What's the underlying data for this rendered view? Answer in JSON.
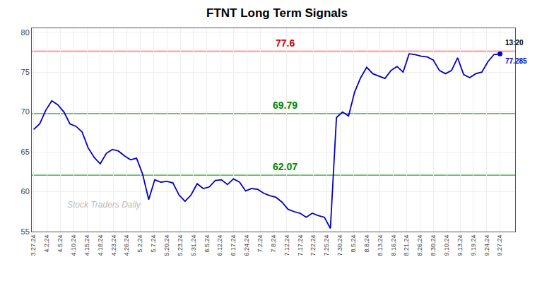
{
  "chart_data": {
    "type": "line",
    "title": "FTNT Long Term Signals",
    "x": [
      0,
      1,
      2,
      3,
      4,
      5,
      6,
      7,
      8,
      9,
      10,
      11,
      12,
      13,
      14,
      15,
      16,
      17,
      18,
      19,
      20,
      21,
      22,
      23,
      24,
      25,
      26,
      27,
      28,
      29,
      30,
      31,
      32,
      33,
      34,
      35,
      36,
      37,
      38,
      39,
      40,
      41,
      42,
      43,
      44,
      45,
      46,
      47,
      48,
      49,
      50,
      51,
      52,
      53,
      54,
      55,
      56,
      57,
      58,
      59,
      60,
      61,
      62,
      63,
      64,
      65,
      66,
      67,
      68,
      69,
      70,
      71,
      72,
      73,
      74,
      75,
      76,
      77
    ],
    "values": [
      67.8,
      68.5,
      70.2,
      71.4,
      70.9,
      70.0,
      68.5,
      68.2,
      67.5,
      65.5,
      64.3,
      63.5,
      64.8,
      65.3,
      65.1,
      64.5,
      64.0,
      64.2,
      62.2,
      59.0,
      61.5,
      61.2,
      61.3,
      61.1,
      59.6,
      58.8,
      59.6,
      61.0,
      60.4,
      60.6,
      61.4,
      61.5,
      60.9,
      61.6,
      61.2,
      60.1,
      60.4,
      60.3,
      59.8,
      59.5,
      59.3,
      58.7,
      57.8,
      57.5,
      57.3,
      56.8,
      57.3,
      57.0,
      56.8,
      55.4,
      69.3,
      70.0,
      69.5,
      72.5,
      74.3,
      75.6,
      74.8,
      74.5,
      74.2,
      75.2,
      75.7,
      75.0,
      77.3,
      77.2,
      77.0,
      76.9,
      76.5,
      75.2,
      74.8,
      75.2,
      76.8,
      74.7,
      74.3,
      74.8,
      75.0,
      76.3,
      77.2,
      77.285
    ],
    "color": "#0000cc",
    "xlim": [
      -0.3,
      79.5
    ],
    "xticks": [
      {
        "value": 0,
        "label": "3.27.24"
      },
      {
        "value": 2.2,
        "label": "4.2.24"
      },
      {
        "value": 4.4,
        "label": "4.5.24"
      },
      {
        "value": 6.6,
        "label": "4.10.24"
      },
      {
        "value": 8.8,
        "label": "4.15.24"
      },
      {
        "value": 11,
        "label": "4.18.24"
      },
      {
        "value": 13.2,
        "label": "4.23.24"
      },
      {
        "value": 15.4,
        "label": "4.26.24"
      },
      {
        "value": 17.6,
        "label": "5.2.24"
      },
      {
        "value": 19.8,
        "label": "5.7.24"
      },
      {
        "value": 22,
        "label": "5.20.24"
      },
      {
        "value": 24.2,
        "label": "5.23.24"
      },
      {
        "value": 26.4,
        "label": "5.31.24"
      },
      {
        "value": 28.6,
        "label": "6.5.24"
      },
      {
        "value": 30.8,
        "label": "6.12.24"
      },
      {
        "value": 33,
        "label": "6.17.24"
      },
      {
        "value": 35.2,
        "label": "6.24.24"
      },
      {
        "value": 37.4,
        "label": "7.2.24"
      },
      {
        "value": 39.6,
        "label": "7.8.24"
      },
      {
        "value": 41.8,
        "label": "7.12.24"
      },
      {
        "value": 44,
        "label": "7.17.24"
      },
      {
        "value": 46.2,
        "label": "7.22.24"
      },
      {
        "value": 48.4,
        "label": "7.25.24"
      },
      {
        "value": 50.6,
        "label": "7.30.24"
      },
      {
        "value": 52.8,
        "label": "8.5.24"
      },
      {
        "value": 55,
        "label": "8.8.24"
      },
      {
        "value": 57.2,
        "label": "8.13.24"
      },
      {
        "value": 59.4,
        "label": "8.16.24"
      },
      {
        "value": 61.6,
        "label": "8.21.24"
      },
      {
        "value": 63.8,
        "label": "8.26.24"
      },
      {
        "value": 66,
        "label": "8.30.24"
      },
      {
        "value": 68.2,
        "label": "9.10.24"
      },
      {
        "value": 70.4,
        "label": "9.13.24"
      },
      {
        "value": 72.6,
        "label": "9.19.24"
      },
      {
        "value": 74.8,
        "label": "9.24.24"
      },
      {
        "value": 77,
        "label": "9.27.24"
      }
    ],
    "ylim": [
      55,
      80.5
    ],
    "yticks": [
      55,
      60,
      65,
      70,
      75,
      80
    ],
    "grid": true,
    "reference_lines": [
      {
        "value": 77.6,
        "color": "#ffaaaa",
        "label": "77.6",
        "label_color": "#cc0000"
      },
      {
        "value": 69.79,
        "color": "#66bb66",
        "label": "69.79",
        "label_color": "#008800"
      },
      {
        "value": 62.07,
        "color": "#66bb66",
        "label": "62.07",
        "label_color": "#008800"
      }
    ],
    "annotations": [
      {
        "text": "13:20",
        "color": "#000000"
      },
      {
        "text": "77.285",
        "color": "#0000cc"
      },
      {
        "text": "Stock Traders Daily",
        "color": "#bbbbbb"
      }
    ]
  }
}
